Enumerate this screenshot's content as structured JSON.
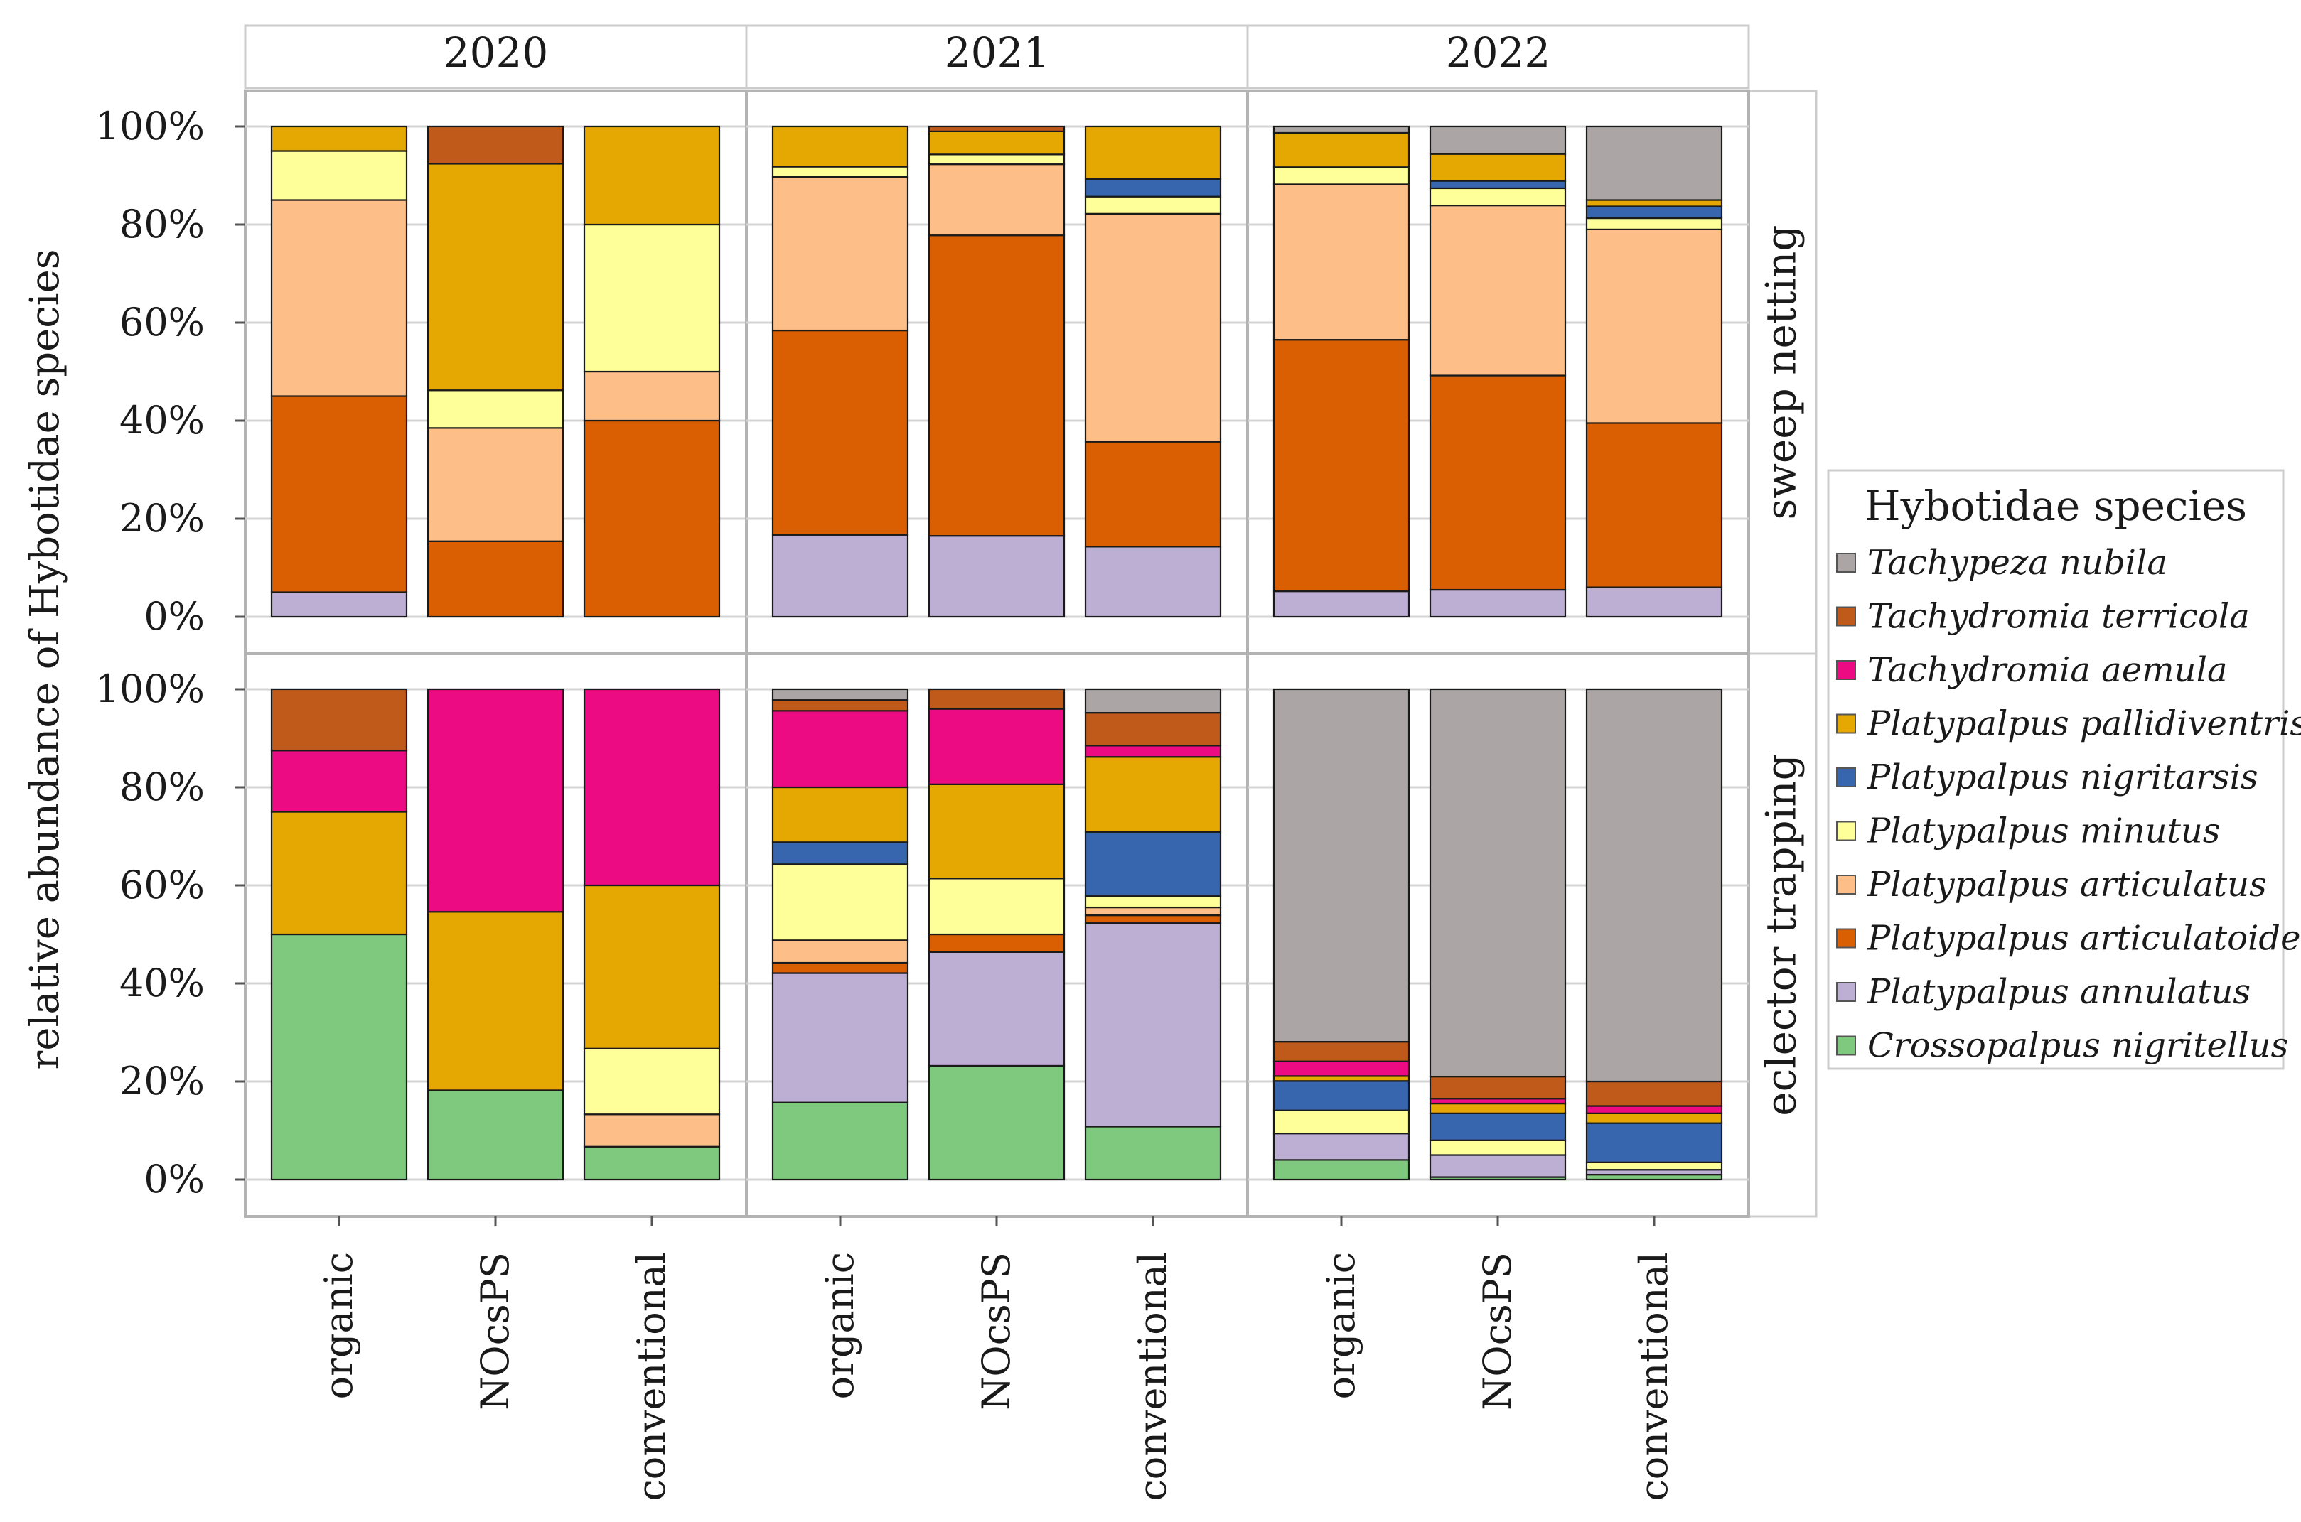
{
  "chart_data": {
    "type": "bar",
    "subtype": "stacked-percent-faceted",
    "ylabel": "relative abundance of Hybotidae species",
    "xlabel": "",
    "ylim": [
      0,
      1
    ],
    "yticks": [
      {
        "value": 0,
        "label": "0%"
      },
      {
        "value": 0.2,
        "label": "20%"
      },
      {
        "value": 0.4,
        "label": "40%"
      },
      {
        "value": 0.6,
        "label": "60%"
      },
      {
        "value": 0.8,
        "label": "80%"
      },
      {
        "value": 1.0,
        "label": "100%"
      }
    ],
    "years": [
      "2020",
      "2021",
      "2022"
    ],
    "methods": [
      "sweep netting",
      "eclector trapping"
    ],
    "categories": [
      "organic",
      "NOcsPS",
      "conventional"
    ],
    "legend": {
      "title": "Hybotidae species",
      "position": "right",
      "entries": [
        {
          "name": "Tachypeza nubila",
          "color": "#aba6a5"
        },
        {
          "name": "Tachydromia terricola",
          "color": "#c05a1a"
        },
        {
          "name": "Tachydromia aemula",
          "color": "#ec0b82"
        },
        {
          "name": "Platypalpus pallidiventris",
          "color": "#e5a802"
        },
        {
          "name": "Platypalpus nigritarsis",
          "color": "#3866ae"
        },
        {
          "name": "Platypalpus minutus",
          "color": "#ffff99"
        },
        {
          "name": "Platypalpus articulatus",
          "color": "#fdbf87"
        },
        {
          "name": "Platypalpus articulatoides",
          "color": "#d95f02"
        },
        {
          "name": "Platypalpus annulatus",
          "color": "#bdaed4"
        },
        {
          "name": "Crossopalpus nigritellus",
          "color": "#7fc97f"
        }
      ]
    },
    "stack_order_bottom_to_top": [
      "Crossopalpus nigritellus",
      "Platypalpus annulatus",
      "Platypalpus articulatoides",
      "Platypalpus articulatus",
      "Platypalpus minutus",
      "Platypalpus nigritarsis",
      "Platypalpus pallidiventris",
      "Tachydromia aemula",
      "Tachydromia terricola",
      "Tachypeza nubila"
    ],
    "panels": [
      {
        "method": "sweep netting",
        "year": "2020",
        "bars": [
          {
            "category": "organic",
            "values": [
              0,
              0.05,
              0.4,
              0.4,
              0.1,
              0,
              0.05,
              0,
              0,
              0
            ]
          },
          {
            "category": "NOcsPS",
            "values": [
              0,
              0,
              0.154,
              0.231,
              0.077,
              0,
              0.462,
              0,
              0.076,
              0
            ]
          },
          {
            "category": "conventional",
            "values": [
              0,
              0,
              0.4,
              0.1,
              0.3,
              0,
              0.2,
              0,
              0,
              0
            ]
          }
        ]
      },
      {
        "method": "sweep netting",
        "year": "2021",
        "bars": [
          {
            "category": "organic",
            "values": [
              0,
              0.167,
              0.417,
              0.313,
              0.021,
              0,
              0.082,
              0,
              0,
              0
            ]
          },
          {
            "category": "NOcsPS",
            "values": [
              0,
              0.165,
              0.613,
              0.145,
              0.02,
              0,
              0.047,
              0,
              0.01,
              0
            ]
          },
          {
            "category": "conventional",
            "values": [
              0,
              0.143,
              0.214,
              0.465,
              0.035,
              0.036,
              0.107,
              0,
              0,
              0
            ]
          }
        ]
      },
      {
        "method": "sweep netting",
        "year": "2022",
        "bars": [
          {
            "category": "organic",
            "values": [
              0,
              0.052,
              0.513,
              0.317,
              0.035,
              0,
              0.07,
              0,
              0,
              0.013
            ]
          },
          {
            "category": "NOcsPS",
            "values": [
              0,
              0.055,
              0.437,
              0.347,
              0.035,
              0.015,
              0.055,
              0,
              0,
              0.056
            ]
          },
          {
            "category": "conventional",
            "values": [
              0,
              0.06,
              0.335,
              0.395,
              0.023,
              0.024,
              0.013,
              0,
              0,
              0.15
            ]
          }
        ]
      },
      {
        "method": "eclector trapping",
        "year": "2020",
        "bars": [
          {
            "category": "organic",
            "values": [
              0.5,
              0,
              0,
              0,
              0,
              0,
              0.25,
              0.125,
              0.125,
              0
            ]
          },
          {
            "category": "NOcsPS",
            "values": [
              0.182,
              0,
              0,
              0,
              0,
              0,
              0.364,
              0.454,
              0,
              0
            ]
          },
          {
            "category": "conventional",
            "values": [
              0.067,
              0,
              0,
              0.066,
              0.134,
              0,
              0.333,
              0.4,
              0,
              0
            ]
          }
        ]
      },
      {
        "method": "eclector trapping",
        "year": "2021",
        "bars": [
          {
            "category": "organic",
            "values": [
              0.157,
              0.264,
              0.021,
              0.046,
              0.155,
              0.045,
              0.112,
              0.156,
              0.022,
              0.022
            ]
          },
          {
            "category": "NOcsPS",
            "values": [
              0.232,
              0.232,
              0.036,
              0,
              0.114,
              0,
              0.192,
              0.154,
              0.04,
              0
            ]
          },
          {
            "category": "conventional",
            "values": [
              0.108,
              0.415,
              0.016,
              0.016,
              0.023,
              0.131,
              0.153,
              0.023,
              0.067,
              0.048
            ]
          }
        ]
      },
      {
        "method": "eclector trapping",
        "year": "2022",
        "bars": [
          {
            "category": "organic",
            "values": [
              0.04,
              0.054,
              0,
              0,
              0.047,
              0.06,
              0.01,
              0.03,
              0.04,
              0.719
            ]
          },
          {
            "category": "NOcsPS",
            "values": [
              0.005,
              0.045,
              0,
              0,
              0.03,
              0.055,
              0.02,
              0.01,
              0.045,
              0.79
            ]
          },
          {
            "category": "conventional",
            "values": [
              0.01,
              0.01,
              0,
              0,
              0.015,
              0.08,
              0.02,
              0.015,
              0.05,
              0.8
            ]
          }
        ]
      }
    ]
  }
}
